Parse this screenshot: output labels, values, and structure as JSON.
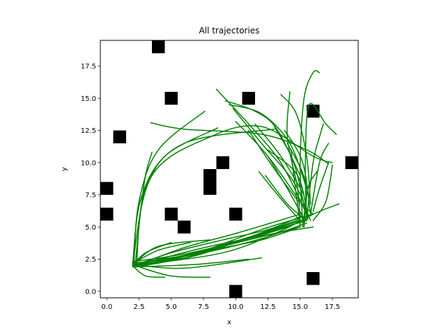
{
  "chart_data": {
    "type": "line",
    "title": "All trajectories",
    "xlabel": "x",
    "ylabel": "y",
    "xlim": [
      -0.5,
      19.5
    ],
    "ylim": [
      -0.5,
      19.5
    ],
    "xticks": [
      "0.0",
      "2.5",
      "5.0",
      "7.5",
      "10.0",
      "12.5",
      "15.0",
      "17.5"
    ],
    "yticks": [
      "0.0",
      "2.5",
      "5.0",
      "7.5",
      "10.0",
      "12.5",
      "15.0",
      "17.5"
    ],
    "xtick_values": [
      0,
      2.5,
      5,
      7.5,
      10,
      12.5,
      15,
      17.5
    ],
    "ytick_values": [
      0,
      2.5,
      5,
      7.5,
      10,
      12.5,
      15,
      17.5
    ],
    "grid": false,
    "line_color": "#008000",
    "obstacle_color": "#000000",
    "obstacles": [
      [
        4,
        19
      ],
      [
        5,
        15
      ],
      [
        11,
        15
      ],
      [
        16,
        14
      ],
      [
        1,
        12
      ],
      [
        19,
        10
      ],
      [
        9,
        10
      ],
      [
        8,
        9
      ],
      [
        8,
        8
      ],
      [
        0,
        8
      ],
      [
        0,
        6
      ],
      [
        5,
        6
      ],
      [
        10,
        6
      ],
      [
        6,
        5
      ],
      [
        16,
        1
      ],
      [
        10,
        0
      ]
    ],
    "trajectories": [
      [
        [
          15,
          5
        ],
        [
          12,
          4
        ],
        [
          8,
          3.2
        ],
        [
          4,
          2.3
        ],
        [
          2,
          2
        ]
      ],
      [
        [
          15.5,
          5.5
        ],
        [
          12,
          4.5
        ],
        [
          8,
          3.3
        ],
        [
          4,
          2.2
        ],
        [
          2.1,
          2.1
        ]
      ],
      [
        [
          16,
          6
        ],
        [
          12,
          4.8
        ],
        [
          7,
          3
        ],
        [
          3.5,
          2.4
        ],
        [
          2.2,
          1.9
        ]
      ],
      [
        [
          15,
          6
        ],
        [
          10,
          4.5
        ],
        [
          6,
          3.4
        ],
        [
          2.5,
          2.1
        ]
      ],
      [
        [
          15,
          5.5
        ],
        [
          11,
          4.2
        ],
        [
          6,
          2.8
        ],
        [
          2.3,
          2.2
        ]
      ],
      [
        [
          14.5,
          5.2
        ],
        [
          10.5,
          4
        ],
        [
          6.5,
          3
        ],
        [
          2,
          2.3
        ]
      ],
      [
        [
          16,
          5
        ],
        [
          13,
          4.5
        ],
        [
          8,
          3.5
        ],
        [
          4,
          2.5
        ],
        [
          2,
          2
        ]
      ],
      [
        [
          2,
          2
        ],
        [
          5,
          2.5
        ],
        [
          9,
          3.5
        ],
        [
          13,
          4.5
        ],
        [
          15,
          5
        ]
      ],
      [
        [
          2.2,
          2.1
        ],
        [
          6,
          2.6
        ],
        [
          10,
          3.8
        ],
        [
          14,
          5
        ],
        [
          16,
          6
        ]
      ],
      [
        [
          2.3,
          1.9
        ],
        [
          7,
          2.8
        ],
        [
          11,
          4.2
        ],
        [
          15,
          5.6
        ]
      ],
      [
        [
          2,
          2.2
        ],
        [
          4,
          2.4
        ],
        [
          8,
          3.1
        ],
        [
          12,
          4.1
        ],
        [
          15.5,
          5.3
        ]
      ],
      [
        [
          2.1,
          2
        ],
        [
          5,
          3
        ],
        [
          9,
          4
        ],
        [
          12.5,
          4.8
        ],
        [
          15,
          5.8
        ]
      ],
      [
        [
          2,
          2.1
        ],
        [
          6,
          1.8
        ],
        [
          12,
          2.6
        ]
      ],
      [
        [
          2,
          1.9
        ],
        [
          7,
          2.1
        ],
        [
          11,
          2.5
        ]
      ],
      [
        [
          2.2,
          2
        ],
        [
          5,
          1.2
        ],
        [
          8,
          1.1
        ]
      ],
      [
        [
          2,
          2
        ],
        [
          3,
          1.2
        ],
        [
          4.5,
          1.1
        ]
      ],
      [
        [
          2,
          2
        ],
        [
          3,
          3
        ],
        [
          5,
          3.8
        ]
      ],
      [
        [
          2.1,
          2.2
        ],
        [
          4,
          3.2
        ],
        [
          6.5,
          3.8
        ]
      ],
      [
        [
          2,
          2
        ],
        [
          4,
          3.5
        ],
        [
          8,
          4
        ]
      ],
      [
        [
          2,
          2
        ],
        [
          9,
          3
        ],
        [
          13.5,
          4.7
        ],
        [
          16,
          6
        ],
        [
          18,
          6.8
        ]
      ],
      [
        [
          2.2,
          2
        ],
        [
          2.6,
          6
        ],
        [
          3,
          9
        ],
        [
          3.5,
          10.8
        ]
      ],
      [
        [
          2.1,
          2.2
        ],
        [
          2.5,
          7
        ],
        [
          4,
          11
        ],
        [
          7.6,
          14
        ]
      ],
      [
        [
          2,
          2
        ],
        [
          2.6,
          7
        ],
        [
          4.5,
          10.5
        ],
        [
          8.6,
          12.7
        ]
      ],
      [
        [
          2.3,
          1.9
        ],
        [
          3,
          8
        ],
        [
          6,
          11.5
        ],
        [
          13,
          12.6
        ]
      ],
      [
        [
          2,
          2.1
        ],
        [
          3.5,
          9
        ],
        [
          8,
          12
        ],
        [
          12,
          12.8
        ],
        [
          16,
          10.5
        ],
        [
          17.5,
          10
        ]
      ],
      [
        [
          3.4,
          13.1
        ],
        [
          6,
          12.6
        ],
        [
          12,
          12.2
        ],
        [
          15.5,
          11
        ],
        [
          17.2,
          9.9
        ]
      ],
      [
        [
          8.5,
          15.7
        ],
        [
          11,
          13
        ],
        [
          13.5,
          10
        ],
        [
          15.5,
          6
        ]
      ],
      [
        [
          9.8,
          14.2
        ],
        [
          12,
          11.5
        ],
        [
          14.5,
          8.5
        ],
        [
          15.8,
          5.5
        ]
      ],
      [
        [
          10,
          13.2
        ],
        [
          12.5,
          10.5
        ],
        [
          15,
          7
        ],
        [
          16,
          6
        ]
      ],
      [
        [
          11,
          12.5
        ],
        [
          13,
          9.5
        ],
        [
          15,
          6.8
        ]
      ],
      [
        [
          11.5,
          13
        ],
        [
          13.5,
          10.5
        ],
        [
          15.3,
          7.5
        ]
      ],
      [
        [
          11.8,
          9.3
        ],
        [
          13.5,
          7.2
        ],
        [
          15,
          5.5
        ]
      ],
      [
        [
          12.3,
          9
        ],
        [
          14,
          6.8
        ],
        [
          15.5,
          5.5
        ]
      ],
      [
        [
          12.5,
          10.5
        ],
        [
          14,
          8
        ],
        [
          15.2,
          5.8
        ]
      ],
      [
        [
          9.5,
          14.5
        ],
        [
          12,
          13.8
        ],
        [
          14.2,
          11.5
        ],
        [
          15.5,
          8
        ]
      ],
      [
        [
          9.2,
          14.8
        ],
        [
          11.5,
          14
        ],
        [
          13.2,
          12.6
        ],
        [
          15,
          9
        ]
      ],
      [
        [
          13.5,
          15.3
        ],
        [
          14.7,
          13.8
        ],
        [
          15.5,
          10.5
        ],
        [
          15.8,
          6.8
        ]
      ],
      [
        [
          13.8,
          12.5
        ],
        [
          15.2,
          10
        ],
        [
          15.8,
          6
        ]
      ],
      [
        [
          14,
          11.5
        ],
        [
          15.4,
          8.5
        ],
        [
          15.2,
          5
        ]
      ],
      [
        [
          15,
          5
        ],
        [
          14.8,
          8
        ],
        [
          14,
          12
        ],
        [
          14.2,
          15.5
        ]
      ],
      [
        [
          15.2,
          5.3
        ],
        [
          15,
          10
        ],
        [
          15.3,
          15
        ],
        [
          16,
          17
        ],
        [
          16.5,
          17
        ]
      ],
      [
        [
          15.5,
          5.8
        ],
        [
          15.4,
          10
        ],
        [
          15.7,
          14.5
        ],
        [
          17,
          13
        ],
        [
          17.8,
          12.2
        ]
      ],
      [
        [
          15.5,
          5.5
        ],
        [
          16,
          10
        ],
        [
          16.5,
          12
        ],
        [
          16.8,
          13
        ]
      ],
      [
        [
          15.8,
          6
        ],
        [
          16.5,
          10
        ],
        [
          17.2,
          11.5
        ]
      ],
      [
        [
          16,
          6.2
        ],
        [
          16.5,
          8
        ],
        [
          17.2,
          10
        ]
      ],
      [
        [
          15.3,
          5
        ],
        [
          15.6,
          8
        ],
        [
          16.3,
          9.3
        ]
      ],
      [
        [
          15,
          5.2
        ],
        [
          14.5,
          9
        ],
        [
          14.3,
          11
        ]
      ],
      [
        [
          16,
          5.5
        ],
        [
          17,
          7
        ],
        [
          17.5,
          9.8
        ]
      ],
      [
        [
          12.5,
          11
        ],
        [
          14.8,
          9
        ],
        [
          15.6,
          5.6
        ]
      ],
      [
        [
          13,
          12.8
        ],
        [
          14.5,
          10
        ],
        [
          15.4,
          6.2
        ]
      ]
    ]
  }
}
